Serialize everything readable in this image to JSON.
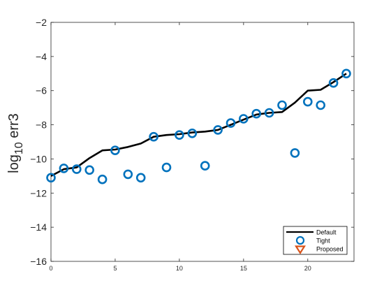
{
  "chart_data": {
    "type": "line",
    "title": "",
    "xlabel": "",
    "ylabel": {
      "base": "log",
      "subscript": "10",
      "rest": " err3"
    },
    "xlim": [
      0,
      23.6
    ],
    "ylim": [
      -16,
      -2
    ],
    "xticks": [
      0,
      5,
      10,
      15,
      20
    ],
    "yticks": [
      -16,
      -14,
      -12,
      -10,
      -8,
      -6,
      -4,
      -2
    ],
    "legend_position": "bottom-right",
    "series": [
      {
        "name": "Default",
        "style": "line",
        "color": "#000000",
        "x": [
          0,
          1,
          2,
          3,
          4,
          5,
          6,
          7,
          8,
          9,
          10,
          11,
          12,
          13,
          14,
          15,
          16,
          17,
          18,
          19,
          20,
          21,
          22,
          23
        ],
        "y": [
          -11.0,
          -10.6,
          -10.5,
          -9.95,
          -9.5,
          -9.45,
          -9.3,
          -9.1,
          -8.7,
          -8.6,
          -8.55,
          -8.45,
          -8.4,
          -8.3,
          -8.0,
          -7.7,
          -7.4,
          -7.3,
          -7.25,
          -6.7,
          -6.0,
          -5.95,
          -5.5,
          -5.0
        ]
      },
      {
        "name": "Tight",
        "style": "marker-circle",
        "color": "#0072BD",
        "x": [
          0,
          1,
          2,
          3,
          4,
          5,
          6,
          7,
          8,
          9,
          10,
          11,
          12,
          13,
          14,
          15,
          16,
          17,
          18,
          19,
          20,
          21,
          22,
          23
        ],
        "y": [
          -11.1,
          -10.55,
          -10.6,
          -10.65,
          -11.2,
          -9.5,
          -10.9,
          -11.1,
          -8.7,
          -10.5,
          -8.6,
          -8.5,
          -10.4,
          -8.3,
          -7.9,
          -7.65,
          -7.35,
          -7.3,
          -6.85,
          -9.65,
          -6.65,
          -6.85,
          -5.55,
          -5.0
        ]
      },
      {
        "name": "Proposed",
        "style": "marker-triangle-down",
        "color": "#D95319",
        "x": [],
        "y": []
      }
    ]
  }
}
